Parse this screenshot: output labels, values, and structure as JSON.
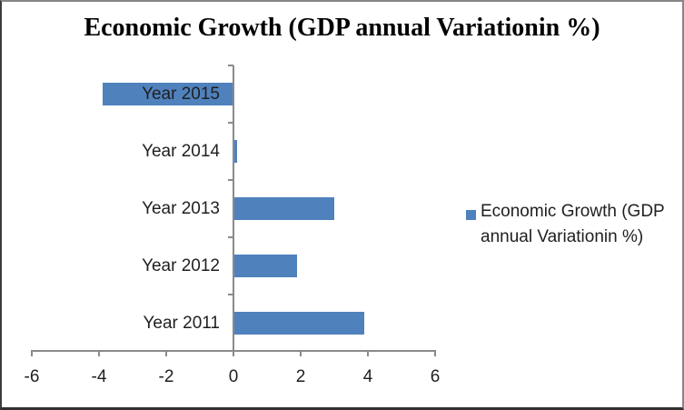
{
  "chart_data": {
    "type": "bar",
    "orientation": "horizontal",
    "title": "Economic Growth (GDP annual Variationin %)",
    "categories_order": "top-to-bottom",
    "categories": [
      "Year 2015",
      "Year 2014",
      "Year 2013",
      "Year 2012",
      "Year 2011"
    ],
    "values": [
      -3.9,
      0.1,
      3.0,
      1.9,
      3.9
    ],
    "series_name": "Economic Growth (GDP annual Variationin %)",
    "xlabel": "",
    "ylabel": "",
    "xlim": [
      -6,
      6
    ],
    "xticks": [
      -6,
      -4,
      -2,
      0,
      2,
      4,
      6
    ],
    "grid": false,
    "legend": {
      "position": "right",
      "wrapped_lines": [
        "Economic Growth (GDP",
        "annual Variationin %)"
      ]
    },
    "colors": {
      "bar": "#4F81BD",
      "axis": "#8A8A8A",
      "text": "#1F1F1F",
      "title_text": "#000000",
      "background": "#FFFFFF"
    }
  }
}
